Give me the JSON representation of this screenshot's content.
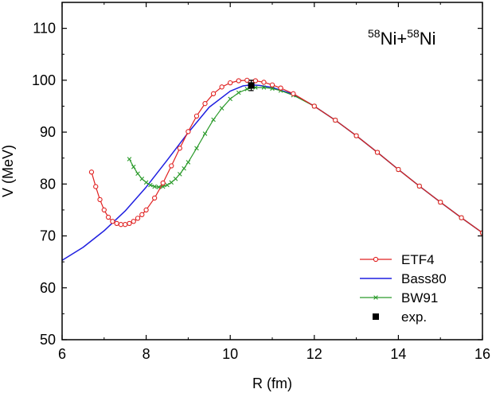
{
  "chart_data": {
    "type": "line",
    "title": "",
    "xlabel": "R (fm)",
    "ylabel": "V (MeV)",
    "xlim": [
      6,
      16
    ],
    "ylim": [
      50,
      115
    ],
    "x_ticks": [
      6,
      8,
      10,
      12,
      14,
      16
    ],
    "y_ticks": [
      50,
      60,
      70,
      80,
      90,
      100,
      110
    ],
    "x_tick_labels": [
      "6",
      "8",
      "10",
      "12",
      "14",
      "16"
    ],
    "y_tick_labels": [
      "50",
      "60",
      "70",
      "80",
      "90",
      "100",
      "110"
    ],
    "grid": false,
    "legend_position": "bottom-right",
    "annotation": {
      "mass_a": "58",
      "elem_a": "Ni",
      "plus": "+",
      "mass_b": "58",
      "elem_b": "Ni"
    },
    "series": [
      {
        "name": "ETF4",
        "color": "#e02020",
        "marker": "open-circle",
        "x": [
          6.7,
          6.8,
          6.9,
          7.0,
          7.1,
          7.2,
          7.3,
          7.4,
          7.5,
          7.6,
          7.7,
          7.8,
          7.9,
          8.0,
          8.2,
          8.4,
          8.6,
          8.8,
          9.0,
          9.2,
          9.4,
          9.6,
          9.8,
          10.0,
          10.2,
          10.4,
          10.6,
          10.8,
          11.0,
          11.2,
          11.5,
          12.0,
          12.5,
          13.0,
          13.5,
          14.0,
          14.5,
          15.0,
          15.5,
          16.0
        ],
        "y": [
          82.3,
          79.5,
          77.0,
          75.0,
          73.6,
          72.8,
          72.4,
          72.2,
          72.2,
          72.4,
          72.8,
          73.4,
          74.1,
          75.0,
          77.3,
          80.2,
          83.5,
          86.9,
          90.1,
          93.1,
          95.5,
          97.4,
          98.7,
          99.5,
          99.9,
          100.0,
          99.9,
          99.6,
          99.1,
          98.5,
          97.4,
          95.0,
          92.3,
          89.3,
          86.1,
          82.8,
          79.6,
          76.5,
          73.5,
          70.6
        ]
      },
      {
        "name": "Bass80",
        "color": "#1f1fe0",
        "marker": "none",
        "x": [
          6.0,
          6.5,
          7.0,
          7.5,
          8.0,
          8.5,
          9.0,
          9.5,
          10.0,
          10.3,
          10.5,
          10.7,
          11.0,
          11.5,
          12.0,
          12.5,
          13.0,
          13.5,
          14.0,
          14.5,
          15.0,
          15.5,
          16.0
        ],
        "y": [
          65.3,
          67.8,
          71.0,
          74.8,
          79.4,
          84.6,
          89.9,
          94.8,
          97.9,
          98.9,
          99.1,
          99.0,
          98.6,
          97.3,
          95.0,
          92.3,
          89.3,
          86.1,
          82.8,
          79.6,
          76.5,
          73.5,
          70.6
        ]
      },
      {
        "name": "BW91",
        "color": "#2a9a2a",
        "marker": "x",
        "x": [
          7.6,
          7.7,
          7.8,
          7.9,
          8.0,
          8.1,
          8.2,
          8.3,
          8.4,
          8.5,
          8.6,
          8.7,
          8.8,
          8.9,
          9.0,
          9.2,
          9.4,
          9.6,
          9.8,
          10.0,
          10.2,
          10.4,
          10.6,
          10.8,
          11.0,
          11.2,
          11.5,
          12.0,
          12.5,
          13.0,
          13.5,
          14.0,
          14.5,
          15.0,
          15.5,
          16.0
        ],
        "y": [
          84.8,
          83.3,
          82.0,
          81.0,
          80.3,
          79.8,
          79.5,
          79.4,
          79.5,
          79.8,
          80.3,
          81.0,
          81.9,
          83.0,
          84.2,
          86.9,
          89.7,
          92.4,
          94.6,
          96.4,
          97.6,
          98.3,
          98.6,
          98.6,
          98.4,
          98.0,
          97.1,
          95.0,
          92.3,
          89.3,
          86.1,
          82.8,
          79.6,
          76.5,
          73.5,
          70.6
        ]
      },
      {
        "name": "exp.",
        "color": "#000000",
        "marker": "filled-square",
        "x": [
          10.5
        ],
        "y": [
          99.0
        ],
        "yerr": [
          1.0
        ]
      }
    ]
  }
}
